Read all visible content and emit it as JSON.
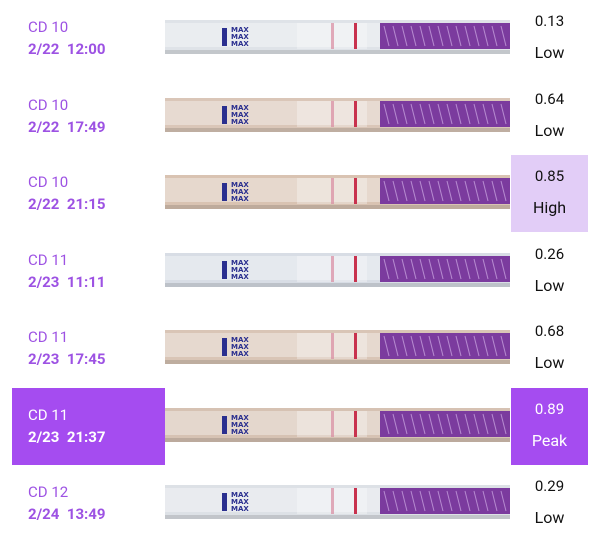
{
  "strip_text": "MAX",
  "rows": [
    {
      "day": "CD 10",
      "datetime": "2/22  12:00",
      "ratio": 0.13,
      "level": "Low",
      "strip_color": "#dfe3e8"
    },
    {
      "day": "CD 10",
      "datetime": "2/22  17:49",
      "ratio": 0.64,
      "level": "Low",
      "strip_color": "#dac6b8"
    },
    {
      "day": "CD 10",
      "datetime": "2/22  21:15",
      "ratio": 0.85,
      "level": "High",
      "strip_color": "#d9c3b2",
      "ratio_bg": "#e2cdf7"
    },
    {
      "day": "CD 11",
      "datetime": "2/23  11:11",
      "ratio": 0.26,
      "level": "Low",
      "strip_color": "#d8dde5"
    },
    {
      "day": "CD 11",
      "datetime": "2/23  17:45",
      "ratio": 0.68,
      "level": "Low",
      "strip_color": "#d9c5b6"
    },
    {
      "day": "CD 11",
      "datetime": "2/23  21:37",
      "ratio": 0.89,
      "level": "Peak",
      "strip_color": "#d6c2b3",
      "ratio_bg": "#a54cf0",
      "date_bg": "#a54cf0"
    },
    {
      "day": "CD 12",
      "datetime": "2/24  13:49",
      "ratio": 0.29,
      "level": "Low",
      "strip_color": "#dde1e6"
    }
  ]
}
